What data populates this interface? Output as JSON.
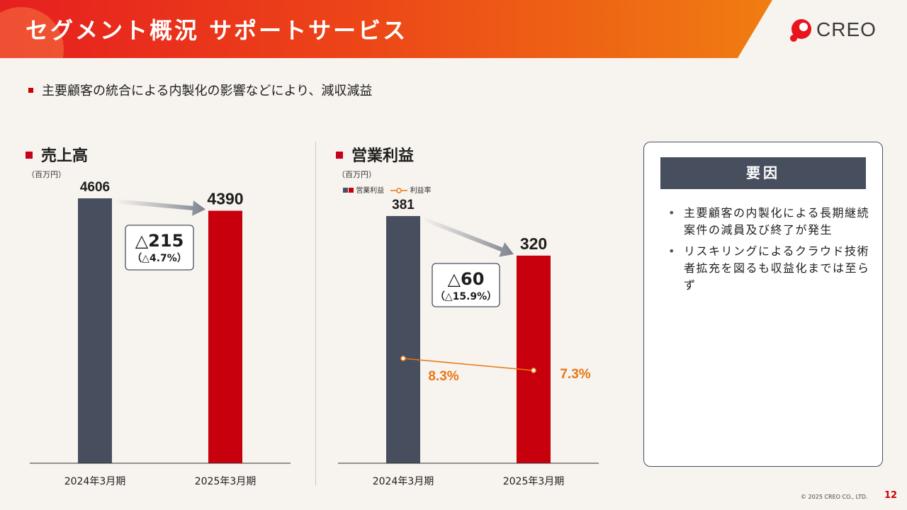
{
  "header": {
    "title": "セグメント概況 サポートサービス"
  },
  "logo": {
    "text": "CREO"
  },
  "summary": {
    "text": "主要顧客の統合による内製化の影響などにより、減収減益"
  },
  "colors": {
    "prior": "#474e5e",
    "current": "#c8000e",
    "accent_orange": "#e87714",
    "brand_red": "#cc0000"
  },
  "sales": {
    "title": "売上高",
    "unit": "（百万円）"
  },
  "profit": {
    "title": "営業利益",
    "unit": "（百万円）",
    "legend_bar": "営業利益",
    "legend_line": "利益率"
  },
  "chart_data": [
    {
      "type": "bar",
      "title": "売上高",
      "unit": "（百万円）",
      "categories": [
        "2024年3月期",
        "2025年3月期"
      ],
      "values": [
        4606,
        4390
      ],
      "value_labels": [
        "4606",
        "4390"
      ],
      "ylim": [
        0,
        4606
      ],
      "grid": false,
      "change": {
        "main": "△215",
        "sub": "（△4.7%）"
      }
    },
    {
      "type": "bar",
      "title": "営業利益",
      "unit": "（百万円）",
      "categories": [
        "2024年3月期",
        "2025年3月期"
      ],
      "series": [
        {
          "name": "営業利益",
          "values": [
            381,
            320
          ],
          "value_labels": [
            "381",
            "320"
          ]
        },
        {
          "name": "利益率",
          "type": "line",
          "values": [
            8.3,
            7.3
          ],
          "value_labels": [
            "8.3%",
            "7.3%"
          ]
        }
      ],
      "ylim": [
        0,
        381
      ],
      "grid": false,
      "legend_position": "top-left",
      "change": {
        "main": "△60",
        "sub": "（△15.9%）"
      }
    }
  ],
  "factors": {
    "title": "要因",
    "items": [
      "主要顧客の内製化による長期継続案件の減員及び終了が発生",
      "リスキリングによるクラウド技術者拡充を図るも収益化までは至らず"
    ]
  },
  "footer": {
    "copyright": "© 2025 CREO CO., LTD.",
    "page": "12"
  }
}
